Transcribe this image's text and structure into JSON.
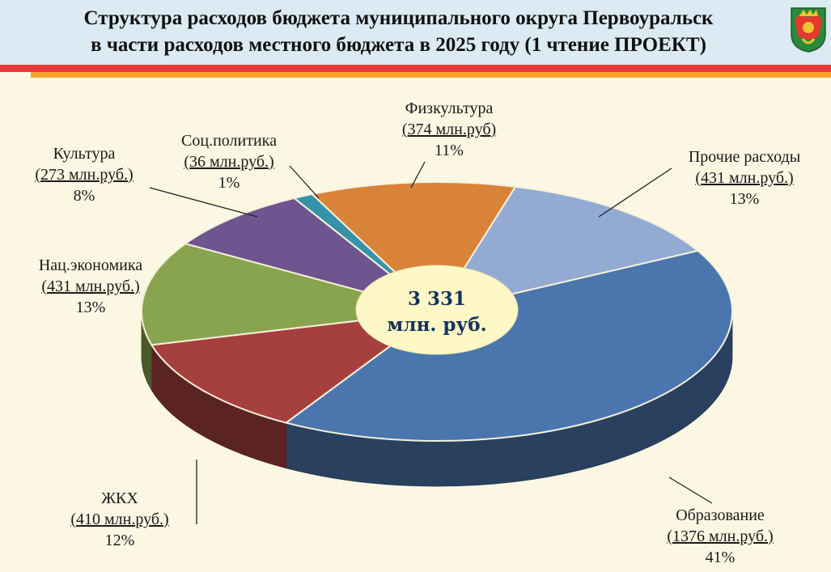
{
  "header": {
    "title_line1": "Структура расходов бюджета муниципального округа Первоуральск",
    "title_line2": "в части расходов местного бюджета в 2025 году (1 чтение ПРОЕКТ)"
  },
  "colors": {
    "header_bg": "#dbeaf3",
    "stripe_red": "#e53a39",
    "stripe_orange": "#f4a52b",
    "center_fill": "#fdf8c6",
    "center_text": "#17335c"
  },
  "chart_data": {
    "type": "pie",
    "style": "3d-donut",
    "center_label": [
      "3 331",
      "млн. руб."
    ],
    "total": 3331,
    "unit": "млн.руб.",
    "slices": [
      {
        "name": "Образование",
        "value": 1376,
        "value_label": "(1376 млн.руб.)",
        "percent_label": "41%",
        "color": "#4a76ad"
      },
      {
        "name": "ЖКХ",
        "value": 410,
        "value_label": "(410 млн.руб.)",
        "percent_label": "12%",
        "color": "#a6403e"
      },
      {
        "name": "Нац.экономика",
        "value": 431,
        "value_label": "(431 млн.руб.)",
        "percent_label": "13%",
        "color": "#89a44e"
      },
      {
        "name": "Культура",
        "value": 273,
        "value_label": "(273 млн.руб.)",
        "percent_label": "8%",
        "color": "#6e5590"
      },
      {
        "name": "Соц.политика",
        "value": 36,
        "value_label": "(36 млн.руб.)",
        "percent_label": "1%",
        "color": "#3592a8"
      },
      {
        "name": "Физкультура",
        "value": 374,
        "value_label": "(374 млн.руб)",
        "percent_label": "11%",
        "color": "#d98339"
      },
      {
        "name": "Прочие расходы",
        "value": 431,
        "value_label": "(431 млн.руб.)",
        "percent_label": "13%",
        "color": "#93aad3"
      }
    ],
    "legend": "none"
  }
}
